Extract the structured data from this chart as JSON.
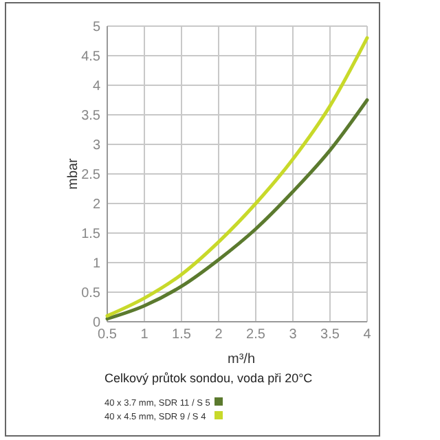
{
  "chart_data": {
    "type": "line",
    "xlabel": "m³/h",
    "ylabel": "mbar",
    "annotations": [
      "Celkový průtok sondou, voda při 20°C"
    ],
    "x": [
      0.5,
      1,
      1.5,
      2,
      2.5,
      3,
      3.5,
      4
    ],
    "series": [
      {
        "name": "40 x 3.7 mm, SDR 11 / S 5",
        "color": "#5b7a2e",
        "values": [
          0.05,
          0.27,
          0.6,
          1.05,
          1.57,
          2.2,
          2.9,
          3.75
        ]
      },
      {
        "name": "40 x 4.5 mm, SDR 9 / S 4",
        "color": "#c8d92a",
        "values": [
          0.1,
          0.4,
          0.8,
          1.35,
          2.0,
          2.75,
          3.65,
          4.8
        ]
      }
    ],
    "xlim": [
      0.5,
      4
    ],
    "xticks": [
      0.5,
      1,
      1.5,
      2,
      2.5,
      3,
      3.5,
      4
    ],
    "ylim": [
      0,
      5
    ],
    "yticks": [
      0,
      0.5,
      1,
      1.5,
      2,
      2.5,
      3,
      3.5,
      4,
      4.5,
      5
    ],
    "grid": true,
    "legend": "bottom",
    "line_style": "solid",
    "marker": "none"
  }
}
